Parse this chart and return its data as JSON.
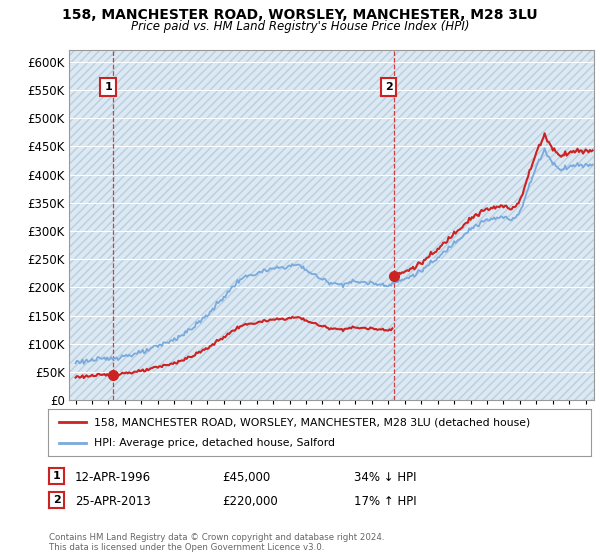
{
  "title1": "158, MANCHESTER ROAD, WORSLEY, MANCHESTER, M28 3LU",
  "title2": "Price paid vs. HM Land Registry's House Price Index (HPI)",
  "ylabel_ticks": [
    "£0",
    "£50K",
    "£100K",
    "£150K",
    "£200K",
    "£250K",
    "£300K",
    "£350K",
    "£400K",
    "£450K",
    "£500K",
    "£550K",
    "£600K"
  ],
  "ytick_values": [
    0,
    50000,
    100000,
    150000,
    200000,
    250000,
    300000,
    350000,
    400000,
    450000,
    500000,
    550000,
    600000
  ],
  "xlim": [
    1993.6,
    2025.5
  ],
  "ylim": [
    0,
    620000
  ],
  "sale1_x": 1996.28,
  "sale1_y": 45000,
  "sale1_label": "1",
  "sale2_x": 2013.32,
  "sale2_y": 220000,
  "sale2_label": "2",
  "hpi_color": "#7aaadd",
  "price_color": "#cc2222",
  "dashed_line_color": "#cc2222",
  "legend_line1": "158, MANCHESTER ROAD, WORSLEY, MANCHESTER, M28 3LU (detached house)",
  "legend_line2": "HPI: Average price, detached house, Salford",
  "ann1_date": "12-APR-1996",
  "ann1_price": "£45,000",
  "ann1_hpi": "34% ↓ HPI",
  "ann2_date": "25-APR-2013",
  "ann2_price": "£220,000",
  "ann2_hpi": "17% ↑ HPI",
  "footnote_line1": "Contains HM Land Registry data © Crown copyright and database right 2024.",
  "footnote_line2": "This data is licensed under the Open Government Licence v3.0.",
  "bg_color": "#dde8f0",
  "hatch_color": "#c8d8e8",
  "grid_color": "#b8ccd8"
}
